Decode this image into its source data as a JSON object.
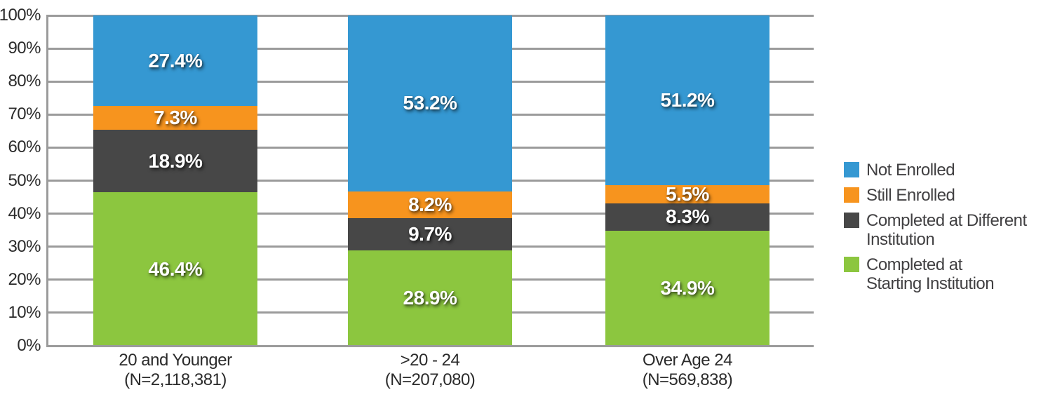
{
  "chart_data": {
    "type": "bar",
    "stacked": true,
    "title": "",
    "xlabel": "",
    "ylabel": "",
    "ylim": [
      0,
      100
    ],
    "ytick_step": 10,
    "ytick_labels": [
      "0%",
      "10%",
      "20%",
      "30%",
      "40%",
      "50%",
      "60%",
      "70%",
      "80%",
      "90%",
      "100%"
    ],
    "grid": true,
    "legend_position": "right",
    "categories": [
      {
        "label": "20 and Younger",
        "n": "(N=2,118,381)"
      },
      {
        "label": ">20 - 24",
        "n": "(N=207,080)"
      },
      {
        "label": "Over Age 24",
        "n": "(N=569,838)"
      }
    ],
    "series": [
      {
        "name": "Completed at Starting Institution",
        "color": "#8cc63f",
        "values": [
          46.4,
          28.9,
          34.9
        ]
      },
      {
        "name": "Completed at Different Institution",
        "color": "#474747",
        "values": [
          18.9,
          9.7,
          8.3
        ]
      },
      {
        "name": "Still Enrolled",
        "color": "#f7941e",
        "values": [
          7.3,
          8.2,
          5.5
        ]
      },
      {
        "name": "Not Enrolled",
        "color": "#3598d2",
        "values": [
          27.4,
          53.2,
          51.2
        ]
      }
    ],
    "legend": [
      {
        "color": "#3598d2",
        "lines": [
          "Not Enrolled"
        ]
      },
      {
        "color": "#f7941e",
        "lines": [
          "Still Enrolled"
        ]
      },
      {
        "color": "#474747",
        "lines": [
          "Completed at Different",
          "Institution"
        ]
      },
      {
        "color": "#8cc63f",
        "lines": [
          "Completed at",
          "Starting Institution"
        ]
      }
    ],
    "value_label_suffix": "%"
  },
  "colors": {
    "background": "#ffffff",
    "grid": "#9b9b9b",
    "axis_text": "#2b2b2b",
    "legend_text": "#414042",
    "bar_label": "#ffffff"
  }
}
